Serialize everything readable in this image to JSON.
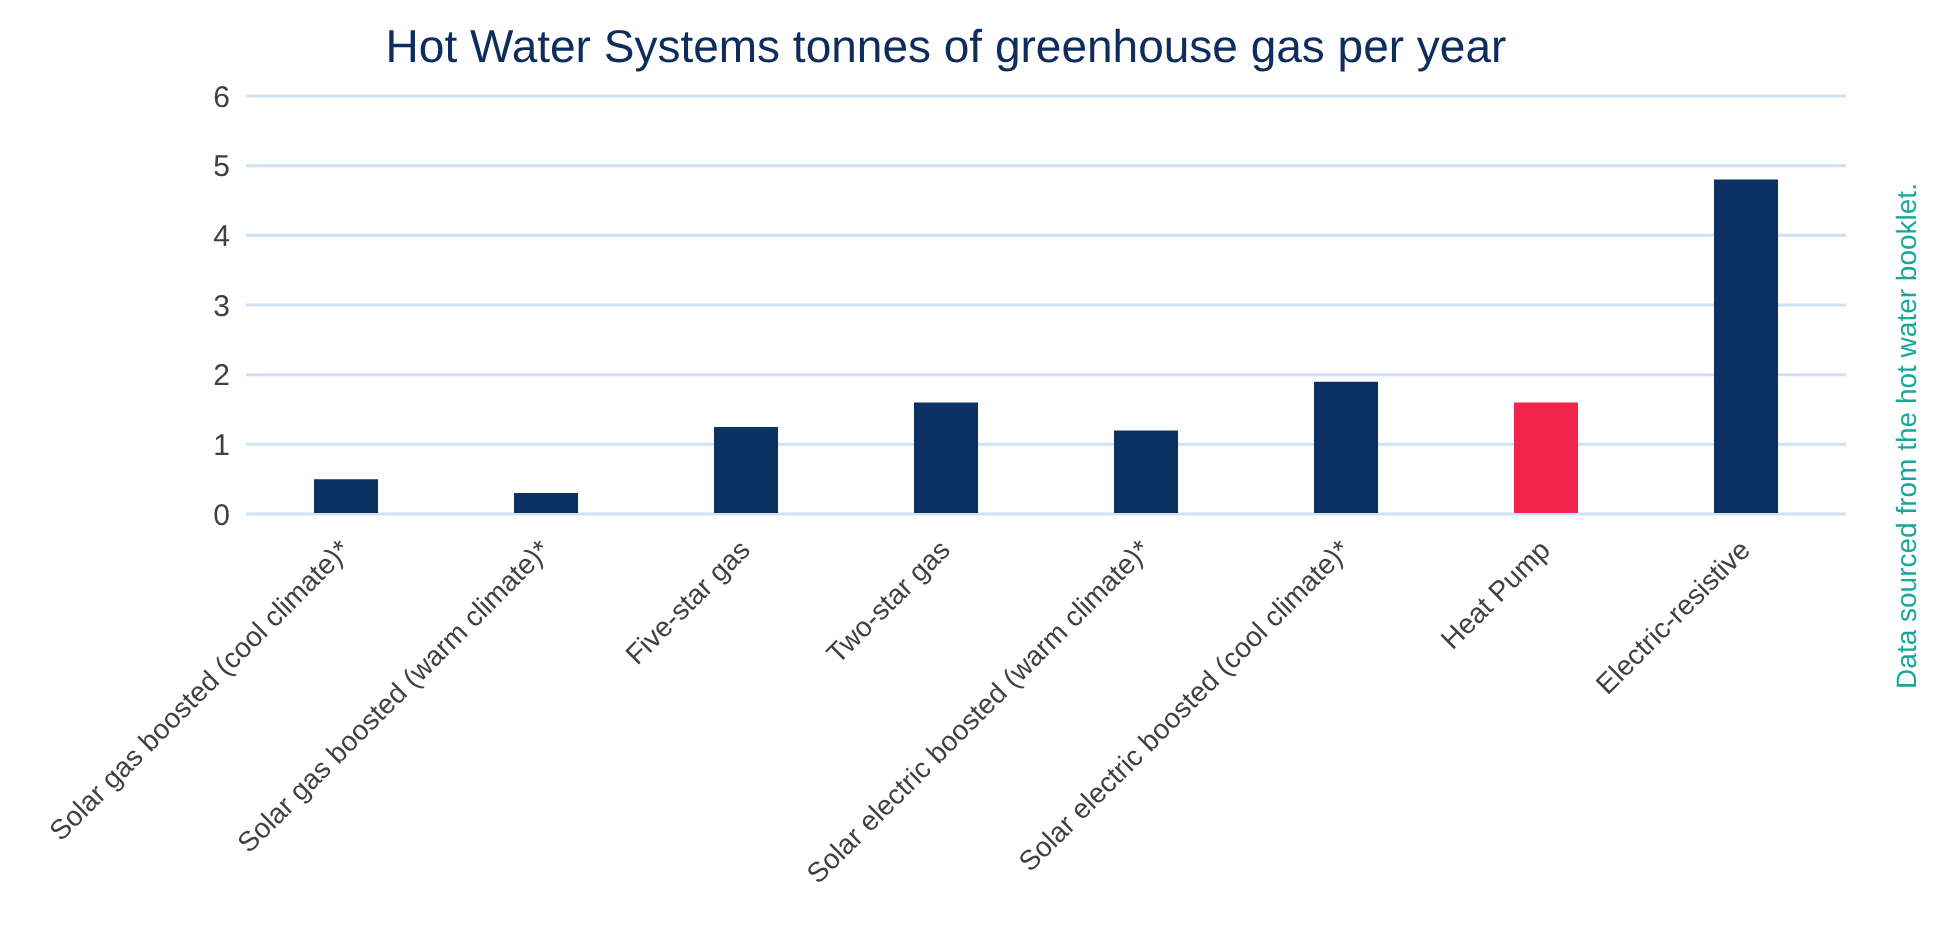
{
  "chart_data": {
    "type": "bar",
    "title": "Hot Water Systems tonnes of greenhouse gas per year",
    "categories": [
      "Solar gas boosted (cool climate)*",
      "Solar gas boosted (warm climate)*",
      "Five-star gas",
      "Two-star gas",
      "Solar electric boosted (warm climate)*",
      "Solar electric boosted (cool climate)*",
      "Heat Pump",
      "Electric-resistive"
    ],
    "values": [
      0.5,
      0.3,
      1.25,
      1.6,
      1.2,
      1.9,
      1.6,
      4.8
    ],
    "colors": [
      "#0c3263",
      "#0c3263",
      "#0c3263",
      "#0c3263",
      "#0c3263",
      "#0c3263",
      "#f0244d",
      "#0c3263"
    ],
    "ylim": [
      0,
      6
    ],
    "yticks": [
      0,
      1,
      2,
      3,
      4,
      5,
      6
    ],
    "grid": "y",
    "annotations": [
      "Data sourced from the hot water booklet."
    ]
  }
}
